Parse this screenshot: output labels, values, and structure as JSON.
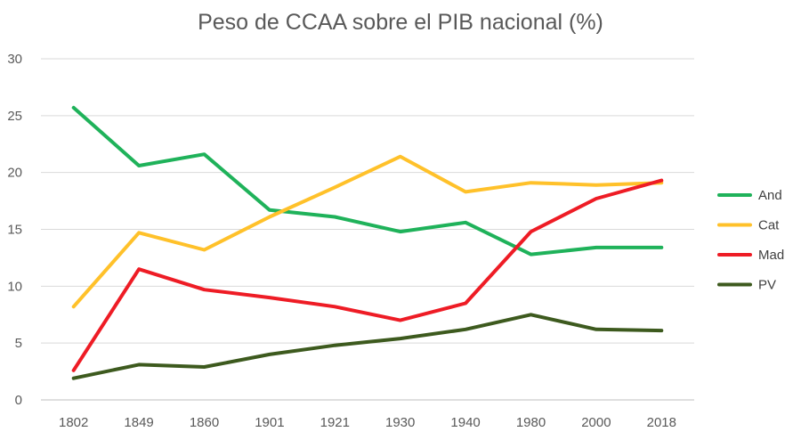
{
  "chart_data": {
    "type": "line",
    "title": "Peso de CCAA sobre el PIB nacional (%)",
    "xlabel": "",
    "ylabel": "",
    "ylim": [
      0,
      30
    ],
    "yticks": [
      0,
      5,
      10,
      15,
      20,
      25,
      30
    ],
    "grid": true,
    "legend_position": "right",
    "categories": [
      "1802",
      "1849",
      "1860",
      "1901",
      "1921",
      "1930",
      "1940",
      "1980",
      "2000",
      "2018"
    ],
    "series": [
      {
        "name": "And",
        "color": "#1fb25a",
        "values": [
          25.7,
          20.6,
          21.6,
          16.7,
          16.1,
          14.8,
          15.6,
          12.8,
          13.4,
          13.4
        ]
      },
      {
        "name": "Cat",
        "color": "#ffc12a",
        "values": [
          8.2,
          14.7,
          13.2,
          16.1,
          18.7,
          21.4,
          18.3,
          19.1,
          18.9,
          19.1
        ]
      },
      {
        "name": "Mad",
        "color": "#ee1c25",
        "values": [
          2.6,
          11.5,
          9.7,
          9.0,
          8.2,
          7.0,
          8.5,
          14.8,
          17.7,
          19.3
        ]
      },
      {
        "name": "PV",
        "color": "#3d5a1e",
        "values": [
          1.9,
          3.1,
          2.9,
          4.0,
          4.8,
          5.4,
          6.2,
          7.5,
          6.2,
          6.1
        ]
      }
    ]
  }
}
